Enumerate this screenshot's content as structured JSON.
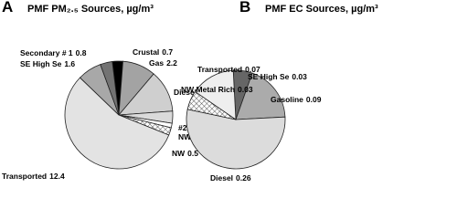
{
  "chart_data": [
    {
      "type": "pie",
      "panel_label": "A",
      "title": "PMF PM₂.₅ Sources, µg/m³",
      "categories": [
        "Crustal",
        "Gas",
        "Diesel",
        "#2",
        "NW Sec.",
        "NW",
        "Transported",
        "SE High Se",
        "Secondary # 1"
      ],
      "values": [
        0.7,
        2.2,
        2.8,
        0.8,
        0.3,
        0.5,
        12.4,
        1.6,
        0.8
      ],
      "colors": [
        "#000000",
        "#a3a3a3",
        "#cfcfcf",
        "#dadada",
        "#ffffff",
        "crosshatch",
        "#e3e3e3",
        "#a8a8a8",
        "#737373"
      ]
    },
    {
      "type": "pie",
      "panel_label": "B",
      "title": "PMF EC Sources, µg/m³",
      "categories": [
        "SE High Se",
        "Gasoline",
        "Diesel",
        "NW Metal Rich",
        "Transported"
      ],
      "values": [
        0.03,
        0.09,
        0.26,
        0.03,
        0.07
      ],
      "colors": [
        "#666666",
        "#ababab",
        "#dcdcdc",
        "crosshatch",
        "#eeeeee"
      ]
    }
  ]
}
